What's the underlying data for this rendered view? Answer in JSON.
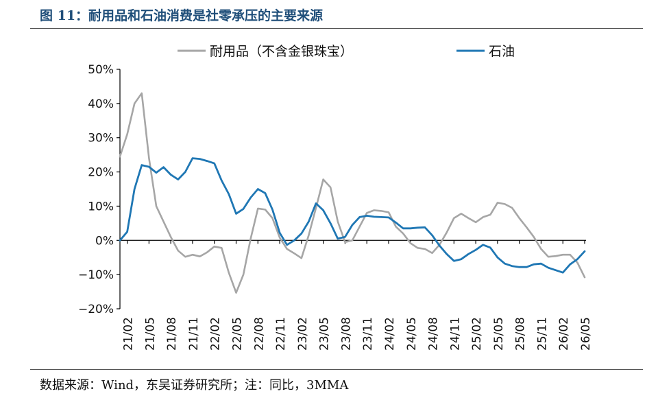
{
  "header": {
    "title": "图 11：耐用品和石油消费是社零承压的主要来源"
  },
  "footer": {
    "source": "数据来源：Wind，东吴证券研究所；注：同比，3MMA"
  },
  "chart_data": {
    "type": "line",
    "title": "",
    "xlabel": "",
    "ylabel": "",
    "ylim": [
      -20,
      50
    ],
    "yticks": [
      "50%",
      "40%",
      "30%",
      "20%",
      "10%",
      "0%",
      "−10%",
      "−20%"
    ],
    "ytick_values": [
      50,
      40,
      30,
      20,
      10,
      0,
      -10,
      -20
    ],
    "xticks": [
      "21/02",
      "21/05",
      "21/08",
      "21/11",
      "22/02",
      "22/05",
      "22/08",
      "22/11",
      "23/02",
      "23/05",
      "23/08",
      "23/11",
      "24/02",
      "24/05",
      "24/08",
      "24/11",
      "25/02",
      "25/05",
      "25/08",
      "25/11",
      "26/02",
      "26/05"
    ],
    "x_start": "21/01",
    "legend_position": "top",
    "grid": false,
    "series": [
      {
        "name": "耐用品（不含金银珠宝）",
        "color": "#a6a6a6",
        "values": [
          24.5,
          31,
          40,
          43,
          24,
          10,
          5.5,
          1,
          -3,
          -4.8,
          -4.2,
          -4.7,
          -3.5,
          -1.8,
          -2.2,
          -9.5,
          -15.3,
          -10,
          0.5,
          9.3,
          9,
          6.5,
          0.8,
          -2.5,
          -3.8,
          -5.2,
          1.5,
          9.5,
          17.8,
          15.5,
          5.5,
          -0.5,
          0,
          4,
          8,
          8.8,
          8.6,
          8.2,
          4,
          2,
          -0.8,
          -2.2,
          -2.5,
          -3.7,
          -1.3,
          2.3,
          6.5,
          7.8,
          6.5,
          5.3,
          6.8,
          7.5,
          11,
          10.6,
          9.5,
          6.5,
          3.8,
          1,
          -2.5,
          -4.8,
          -4.6,
          -4.2,
          -4.2,
          -6.5,
          -10.8
        ]
      },
      {
        "name": "石油",
        "color": "#1f77b4",
        "values": [
          0,
          2.5,
          15,
          22,
          21.5,
          19.8,
          21.4,
          19.2,
          17.8,
          20,
          24,
          23.8,
          23.2,
          22.5,
          17.5,
          13.5,
          7.8,
          9.2,
          12.5,
          15,
          13.8,
          9,
          2.2,
          -1.3,
          0,
          2,
          5.5,
          10.8,
          8.8,
          5,
          0.5,
          1,
          4.5,
          6.8,
          7.2,
          6.9,
          6.8,
          6.7,
          5.2,
          3.5,
          3.5,
          3.7,
          3.8,
          1.5,
          -1.5,
          -4,
          -6,
          -5.5,
          -4,
          -2.8,
          -1.3,
          -2.1,
          -5,
          -6.8,
          -7.5,
          -7.8,
          -7.8,
          -7,
          -6.8,
          -8,
          -8.7,
          -9.4,
          -7,
          -5.5,
          -3.2
        ]
      }
    ]
  }
}
